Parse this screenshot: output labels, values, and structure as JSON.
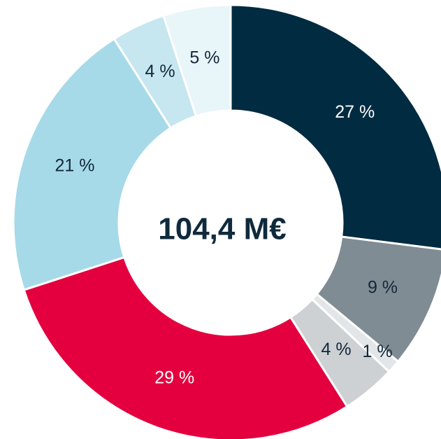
{
  "chart_data": {
    "type": "donut",
    "center_label": "104,4 M€",
    "values": [
      27,
      9,
      1,
      4,
      29,
      21,
      4,
      5
    ],
    "value_labels": [
      "27 %",
      "9 %",
      "1 %",
      "4 %",
      "29 %",
      "21 %",
      "4 %",
      "5 %"
    ],
    "colors": [
      "#002b40",
      "#7f8c93",
      "#e3e6e8",
      "#cdd1d4",
      "#e4003f",
      "#a6dae8",
      "#c6e6f0",
      "#e8f5f9"
    ]
  }
}
